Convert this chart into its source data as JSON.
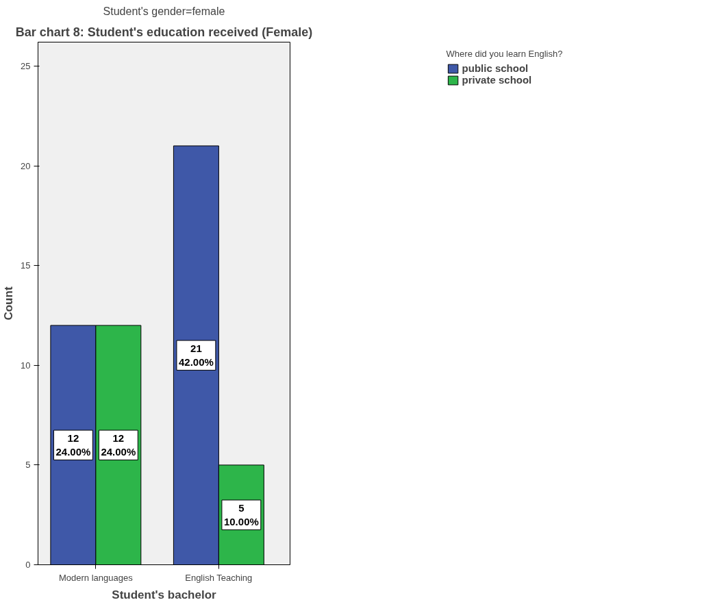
{
  "chart_data": {
    "type": "bar",
    "title": "Bar chart 8: Student's education received (Female)",
    "subtitle": "Student's gender=female",
    "xlabel": "Student's bachelor",
    "ylabel": "Count",
    "legend_title": "Where did you learn English?",
    "categories": [
      "Modern languages",
      "English Teaching"
    ],
    "series": [
      {
        "name": "public school",
        "color": "#3f58a8",
        "values": [
          12,
          21
        ],
        "value_labels": [
          "12\n24.00%",
          "21\n42.00%"
        ]
      },
      {
        "name": "private school",
        "color": "#2db54a",
        "values": [
          12,
          5
        ],
        "value_labels": [
          "12\n24.00%",
          "5\n10.00%"
        ]
      }
    ],
    "ylim": [
      0,
      26.2
    ],
    "yticks": [
      0,
      5,
      10,
      15,
      20,
      25
    ],
    "grid": false,
    "legend": "top right"
  }
}
